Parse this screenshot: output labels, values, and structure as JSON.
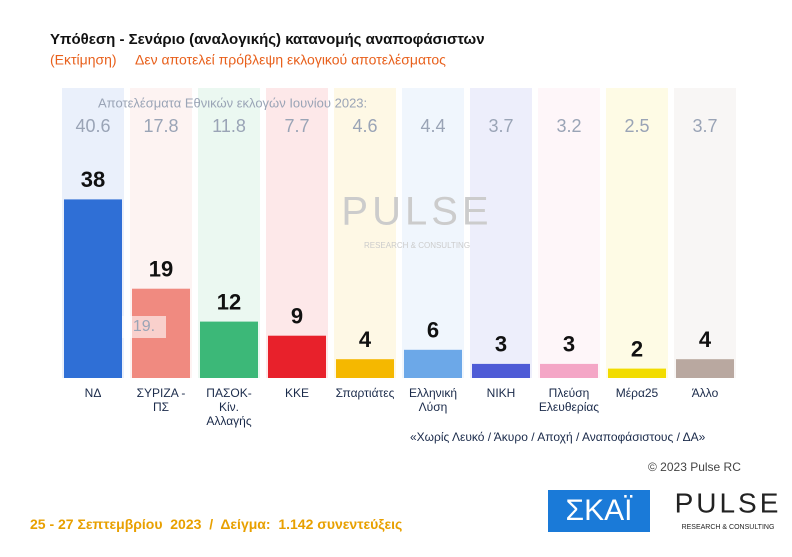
{
  "chart_data": {
    "type": "bar",
    "title": "Υπόθεση - Σενάριο (αναλογικής) κατανομής αναποφάσιστων",
    "subtitle": [
      "(Εκτίμηση)",
      "Δεν αποτελεί πρόβλεψη εκλογικού αποτελέσματος"
    ],
    "categories": [
      "ΝΔ",
      "ΣΥΡΙΖΑ - ΠΣ",
      "ΠΑΣΟΚ-Κίν. Αλλαγής",
      "ΚΚΕ",
      "Σπαρτιάτες",
      "Ελληνική Λύση",
      "ΝΙΚΗ",
      "Πλεύση Ελευθερίας",
      "Μέρα25",
      "Άλλο"
    ],
    "values": [
      38,
      19,
      12,
      9,
      4,
      6,
      3,
      3,
      2,
      4
    ],
    "colors": [
      "#2f6fd6",
      "#f08a80",
      "#3cb878",
      "#e8212b",
      "#f5b800",
      "#6ca8e8",
      "#4e5bd6",
      "#f4a6c6",
      "#f2dc00",
      "#b9a8a0"
    ],
    "previous": {
      "label": "Αποτελέσματα Εθνικών εκλογών Ιουνίου 2023:",
      "values": [
        40.6,
        17.8,
        11.8,
        7.7,
        4.6,
        4.4,
        3.7,
        3.2,
        2.5,
        3.7
      ]
    },
    "annotation": "19."
  },
  "note": "«Χωρίς Λευκό / Άκυρο / Αποχή / Αναποφάσιστους / ΔΑ»",
  "copyright": "© 2023 Pulse RC",
  "footer": "25 - 27 Σεπτεμβρίου  2023  /  Δείγμα:  1.142 συνεντεύξεις",
  "logos": {
    "skai": "ΣΚΑΪ",
    "pulse": "PULSE",
    "pulse_sub": "RESEARCH & CONSULTING"
  }
}
